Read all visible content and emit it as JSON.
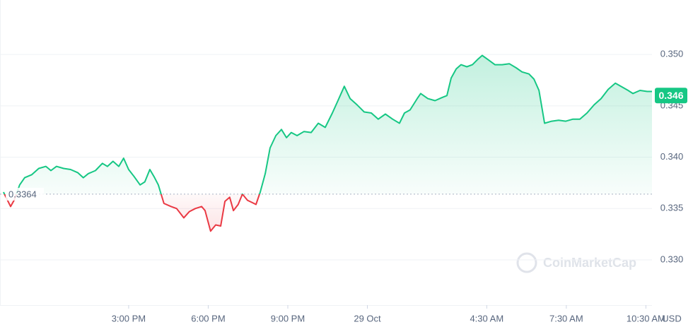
{
  "chart_data": {
    "type": "line",
    "y_unit": "USD",
    "watermark": "CoinMarketCap",
    "baseline": 0.3364,
    "last_price": 0.346,
    "up_color": "#16c784",
    "down_color": "#ea3943",
    "grid": true,
    "xlim": [
      10.15,
      34.73
    ],
    "xticks": [
      {
        "value": 15,
        "label": "3:00 PM"
      },
      {
        "value": 18,
        "label": "6:00 PM"
      },
      {
        "value": 21,
        "label": "9:00 PM"
      },
      {
        "value": 24,
        "label": "29 Oct"
      },
      {
        "value": 28.5,
        "label": "4:30 AM"
      },
      {
        "value": 31.5,
        "label": "7:30 AM"
      },
      {
        "value": 34.5,
        "label": "10:30 AM"
      }
    ],
    "ylim": [
      0.3256,
      0.3553
    ],
    "yticks": [
      {
        "value": 0.33,
        "label": "0.330"
      },
      0.335,
      {
        "value": 0.34,
        "label": "0.340"
      },
      0.345,
      {
        "value": 0.35,
        "label": "0.350"
      }
    ],
    "x": [
      10.28,
      10.55,
      10.68,
      10.89,
      11.08,
      11.35,
      11.61,
      11.88,
      12.07,
      12.28,
      12.55,
      12.81,
      13.08,
      13.29,
      13.48,
      13.75,
      14.01,
      14.2,
      14.41,
      14.63,
      14.81,
      15.0,
      15.21,
      15.43,
      15.61,
      15.8,
      15.96,
      16.12,
      16.33,
      16.6,
      16.81,
      17.08,
      17.29,
      17.51,
      17.75,
      17.88,
      18.09,
      18.28,
      18.47,
      18.63,
      18.81,
      18.95,
      19.13,
      19.29,
      19.48,
      19.64,
      19.8,
      19.96,
      20.15,
      20.33,
      20.55,
      20.76,
      20.95,
      21.13,
      21.35,
      21.61,
      21.88,
      22.15,
      22.41,
      22.68,
      22.89,
      23.13,
      23.35,
      23.61,
      23.88,
      24.15,
      24.41,
      24.68,
      24.95,
      25.21,
      25.4,
      25.61,
      25.88,
      26.01,
      26.28,
      26.55,
      26.81,
      27.0,
      27.16,
      27.35,
      27.53,
      27.75,
      27.96,
      28.15,
      28.33,
      28.55,
      28.81,
      29.08,
      29.35,
      29.61,
      29.83,
      30.09,
      30.28,
      30.47,
      30.68,
      30.95,
      31.21,
      31.48,
      31.75,
      32.01,
      32.28,
      32.55,
      32.81,
      33.08,
      33.35,
      33.56,
      33.83,
      34.01,
      34.28,
      34.55,
      34.73
    ],
    "values": [
      0.3366,
      0.3352,
      0.3358,
      0.3373,
      0.338,
      0.3383,
      0.3389,
      0.3391,
      0.3387,
      0.3391,
      0.3389,
      0.3388,
      0.3385,
      0.338,
      0.3384,
      0.3387,
      0.3394,
      0.3391,
      0.3396,
      0.3391,
      0.3399,
      0.3388,
      0.3381,
      0.3373,
      0.3376,
      0.3388,
      0.3381,
      0.3373,
      0.3355,
      0.3352,
      0.335,
      0.3341,
      0.3347,
      0.335,
      0.3352,
      0.3348,
      0.3328,
      0.3334,
      0.3333,
      0.3357,
      0.3361,
      0.3348,
      0.3354,
      0.3364,
      0.3358,
      0.3356,
      0.3354,
      0.3366,
      0.3384,
      0.3409,
      0.3421,
      0.3427,
      0.3419,
      0.3424,
      0.3421,
      0.3425,
      0.3424,
      0.3433,
      0.3429,
      0.3443,
      0.3455,
      0.3469,
      0.3457,
      0.3451,
      0.3444,
      0.3443,
      0.3437,
      0.3442,
      0.3437,
      0.3433,
      0.3443,
      0.3446,
      0.3457,
      0.3462,
      0.3457,
      0.3455,
      0.3458,
      0.346,
      0.3477,
      0.3486,
      0.349,
      0.3488,
      0.349,
      0.3495,
      0.3499,
      0.3495,
      0.349,
      0.349,
      0.3491,
      0.3487,
      0.3483,
      0.3481,
      0.3476,
      0.3465,
      0.3433,
      0.3435,
      0.3436,
      0.3435,
      0.3437,
      0.3437,
      0.3443,
      0.3451,
      0.3457,
      0.3466,
      0.3472,
      0.3469,
      0.3465,
      0.3462,
      0.3465,
      0.3464,
      0.3464
    ]
  }
}
